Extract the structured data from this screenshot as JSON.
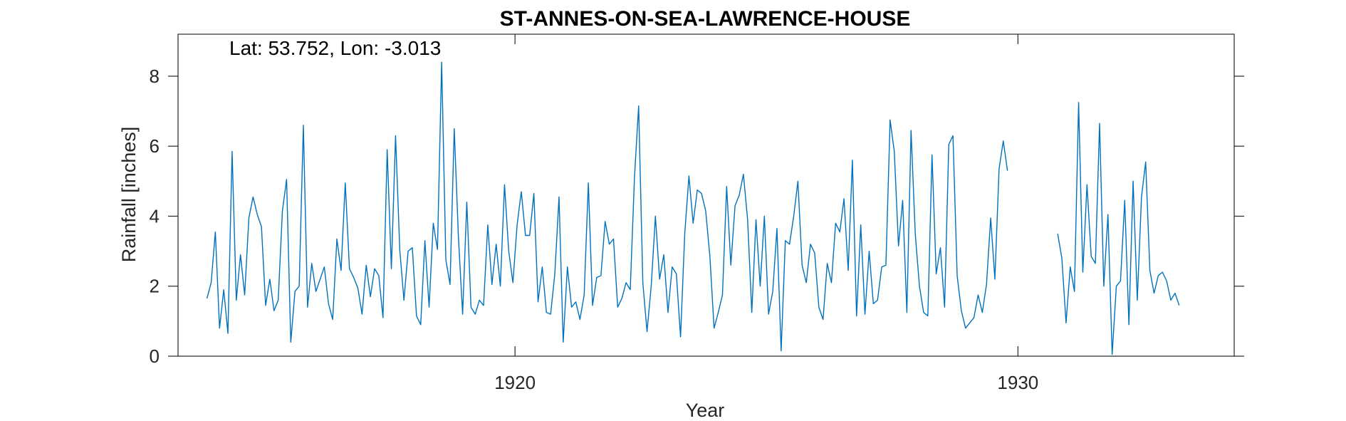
{
  "chart_data": {
    "type": "line",
    "title": "ST-ANNES-ON-SEA-LAWRENCE-HOUSE",
    "annotation": "Lat: 53.752, Lon: -3.013",
    "xlabel": "Year",
    "ylabel": "Rainfall [inches]",
    "xlim": [
      1913.3,
      1934.3
    ],
    "ylim": [
      0,
      9.2
    ],
    "xticks": [
      1920,
      1930
    ],
    "xtick_labels": [
      "1920",
      "1930"
    ],
    "yticks": [
      0,
      2,
      4,
      6,
      8
    ],
    "ytick_labels": [
      "0",
      "2",
      "4",
      "6",
      "8"
    ],
    "grid": false,
    "colors": {
      "series": "#0072bd",
      "axes": "#262626"
    },
    "segments": [
      {
        "start": 1913.875,
        "step": 0.0833333,
        "values": [
          1.65,
          2.1,
          3.55,
          0.8,
          1.9,
          0.65,
          5.85,
          1.6,
          2.9,
          1.75,
          3.95,
          4.55,
          4.05,
          3.7,
          1.45,
          2.2,
          1.3,
          1.6,
          4.15,
          5.05,
          0.4,
          1.85,
          2.0,
          6.6,
          1.4,
          2.65,
          1.85,
          2.2,
          2.55,
          1.5,
          1.05,
          3.35,
          2.45,
          4.95,
          2.5,
          2.25,
          1.95,
          1.2,
          2.6,
          1.7,
          2.5,
          2.3,
          1.1,
          5.9,
          2.5,
          6.3,
          3.05,
          1.6,
          3.0,
          3.1,
          1.15,
          0.9,
          3.3,
          1.4,
          3.8,
          3.05,
          8.4,
          2.75,
          2.05,
          6.5,
          3.4,
          1.2,
          4.4,
          1.4,
          1.2,
          1.6,
          1.45,
          3.75,
          2.05,
          3.2,
          2.0,
          4.9,
          3.0,
          2.1,
          3.75,
          4.7,
          3.45,
          3.45,
          4.65,
          1.55,
          2.55,
          1.25,
          1.2,
          2.35,
          4.55,
          0.4,
          2.55,
          1.4,
          1.55,
          1.05,
          1.75,
          4.95,
          1.45,
          2.25,
          2.3,
          3.85,
          3.2,
          3.35,
          1.4,
          1.65,
          2.1,
          1.9,
          5.1,
          7.15,
          2.1,
          0.7,
          2.0,
          4.0,
          2.2,
          2.9,
          1.25,
          2.55,
          2.35,
          0.55,
          3.5,
          5.15,
          3.8,
          4.75,
          4.65,
          4.15,
          2.85,
          0.8,
          1.25,
          1.75,
          4.85,
          2.6,
          4.3,
          4.6,
          5.2,
          3.9,
          1.25,
          3.9,
          2.0,
          4.0,
          1.2,
          1.85,
          3.65,
          0.15,
          3.3,
          3.2,
          4.0,
          5.0,
          2.6,
          2.1,
          3.2,
          2.95,
          1.4,
          1.05,
          2.65,
          2.1,
          3.8,
          3.55,
          4.5,
          2.45,
          5.6,
          1.15,
          3.75,
          1.2,
          3.0,
          1.5,
          1.6,
          2.55,
          2.6,
          6.75,
          5.85,
          3.15,
          4.45,
          1.25,
          6.45,
          3.5,
          2.0,
          1.25,
          1.15,
          5.75,
          2.35,
          3.1,
          1.4,
          6.05,
          6.3,
          2.3,
          1.3,
          0.8,
          0.95,
          1.1,
          1.75,
          1.25,
          2.05,
          3.95,
          2.2,
          5.35,
          6.15,
          5.3
        ]
      },
      {
        "start": 1930.79,
        "step": 0.0833333,
        "values": [
          3.5,
          2.8,
          0.95,
          2.55,
          1.85,
          7.25,
          2.4,
          4.9,
          2.85,
          2.65,
          6.65,
          2.0,
          4.05,
          0.05,
          2.0,
          2.15,
          4.45,
          0.9,
          5.0,
          1.6,
          4.55,
          5.55,
          2.45,
          1.8,
          2.3,
          2.4,
          2.15,
          1.6,
          1.8,
          1.45
        ]
      }
    ]
  }
}
